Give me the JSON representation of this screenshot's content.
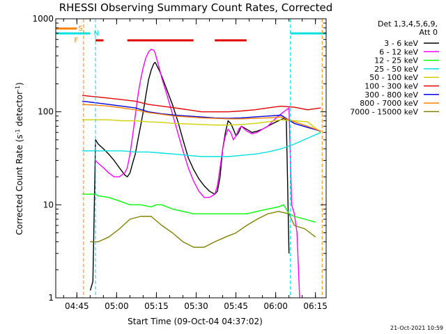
{
  "chart_data": {
    "type": "line",
    "title": "RHESSI Observing Summary Count Rates, Corrected",
    "xlabel": "Start Time (09-Oct-04 04:37:02)",
    "ylabel": "Corrected Count Rate (s⁻¹ detector⁻¹)",
    "ylabel_main": "Corrected Count Rate (s",
    "ylabel_sup1": "-1",
    "ylabel_mid": " detector",
    "ylabel_sup2": "-1",
    "ylabel_end": ")",
    "yscale": "log",
    "ylim": [
      1,
      1000
    ],
    "xlim_minutes_from_start": [
      0,
      102
    ],
    "xtick_labels": [
      "04:45",
      "05:00",
      "05:15",
      "05:30",
      "05:45",
      "06:00",
      "06:15"
    ],
    "xtick_minutes_from_start": [
      7.97,
      22.97,
      37.97,
      52.97,
      67.97,
      82.97,
      97.97
    ],
    "ytick_labels": [
      "1",
      "10",
      "100",
      "1000"
    ],
    "ytick_values": [
      1,
      10,
      100,
      1000
    ],
    "legend_header": [
      "Det 1,3,4,5,6,9,",
      "Att 0"
    ],
    "legend_position": "right",
    "timestamp": "21-Oct-2021 10:59",
    "flags": {
      "saa_label": "S",
      "flare_label": "F",
      "night_label": "N",
      "saa": [
        [
          0,
          8
        ]
      ],
      "night": [
        [
          0,
          13
        ],
        [
          88.5,
          102
        ]
      ],
      "flare": [
        [
          15,
          18
        ],
        [
          27,
          52
        ],
        [
          60,
          72
        ]
      ],
      "saa_color": "#ff8000",
      "night_color": "#00e0e0",
      "flare_color": "#e00000"
    },
    "vlines": [
      {
        "t": 10.5,
        "color": "#ff8000"
      },
      {
        "t": 15.0,
        "color": "#00e0e0"
      },
      {
        "t": 88.5,
        "color": "#00e0e0"
      },
      {
        "t": 100.5,
        "color": "#ff8000"
      }
    ],
    "series": [
      {
        "name": "3 - 6 keV",
        "color": "#000000",
        "x": [
          13,
          14,
          15,
          16,
          18,
          20,
          22,
          24,
          26,
          27,
          28,
          29,
          30,
          31,
          32,
          33,
          34,
          35,
          36,
          37,
          37.5,
          38,
          39,
          40,
          42,
          44,
          46,
          48,
          50,
          52,
          54,
          56,
          58,
          60,
          61,
          62,
          63,
          64,
          65,
          66,
          67,
          68,
          69,
          70,
          72,
          74,
          76,
          78,
          80,
          82,
          84,
          86,
          87,
          88
        ],
        "y": [
          1.2,
          1.5,
          50,
          45,
          40,
          35,
          30,
          25,
          21,
          20,
          22,
          28,
          35,
          50,
          70,
          100,
          150,
          220,
          280,
          330,
          340,
          320,
          280,
          240,
          170,
          120,
          80,
          50,
          32,
          24,
          19,
          16,
          14,
          13,
          14,
          20,
          40,
          60,
          80,
          75,
          65,
          55,
          60,
          70,
          65,
          60,
          62,
          65,
          70,
          75,
          80,
          85,
          82,
          3
        ]
      },
      {
        "name": "6 - 12 keV",
        "color": "#ff00ff",
        "x": [
          15,
          16,
          18,
          20,
          22,
          24,
          26,
          27,
          28,
          29,
          30,
          31,
          32,
          33,
          34,
          35,
          36,
          37,
          37.5,
          38,
          39,
          40,
          42,
          44,
          46,
          48,
          50,
          52,
          54,
          56,
          58,
          60,
          61,
          62,
          63,
          64,
          65,
          66,
          67,
          68,
          69,
          70,
          72,
          74,
          76,
          78,
          80,
          82,
          84,
          86,
          88,
          89,
          90,
          91,
          92
        ],
        "y": [
          30,
          28,
          25,
          22,
          20,
          20,
          22,
          25,
          35,
          55,
          90,
          150,
          220,
          300,
          380,
          440,
          470,
          460,
          430,
          380,
          300,
          230,
          150,
          95,
          60,
          38,
          25,
          18,
          14,
          12,
          12,
          13,
          16,
          25,
          40,
          55,
          65,
          60,
          50,
          55,
          65,
          70,
          62,
          58,
          60,
          65,
          70,
          80,
          90,
          100,
          110,
          10,
          8,
          5,
          1
        ]
      },
      {
        "name": "12 - 25 keV",
        "color": "#00ff00",
        "x": [
          10,
          13,
          15,
          16,
          20,
          24,
          28,
          32,
          36,
          38,
          40,
          44,
          48,
          52,
          56,
          60,
          64,
          68,
          72,
          76,
          80,
          84,
          86,
          88,
          90,
          94,
          98
        ],
        "y": [
          13,
          13,
          13,
          12.5,
          12,
          11,
          10,
          10,
          9.5,
          10,
          10,
          9,
          8.5,
          8,
          8,
          8,
          8,
          8,
          8,
          8.5,
          9,
          9.5,
          10,
          8,
          7.5,
          7,
          6.5
        ]
      },
      {
        "name": "25 - 50 keV",
        "color": "#00e0e0",
        "x": [
          10,
          15,
          20,
          25,
          30,
          35,
          40,
          45,
          50,
          55,
          60,
          65,
          70,
          75,
          80,
          85,
          90,
          95,
          100
        ],
        "y": [
          38,
          38,
          38,
          38,
          37,
          37,
          36,
          35,
          34,
          33,
          33,
          33,
          34,
          35,
          37,
          40,
          45,
          52,
          60
        ]
      },
      {
        "name": "50 - 100 keV",
        "color": "#d0d000",
        "x": [
          10,
          15,
          20,
          25,
          30,
          35,
          40,
          45,
          50,
          55,
          60,
          65,
          70,
          75,
          80,
          85,
          90,
          95,
          100
        ],
        "y": [
          82,
          82,
          82,
          80,
          80,
          78,
          77,
          75,
          74,
          73,
          72,
          72,
          73,
          75,
          78,
          82,
          80,
          78,
          60
        ]
      },
      {
        "name": "100 - 300 keV",
        "color": "#e00000",
        "x": [
          10,
          15,
          20,
          25,
          30,
          35,
          40,
          45,
          50,
          55,
          60,
          65,
          70,
          75,
          80,
          85,
          90,
          95,
          100
        ],
        "y": [
          150,
          145,
          140,
          135,
          130,
          120,
          115,
          110,
          105,
          100,
          100,
          100,
          102,
          105,
          110,
          115,
          112,
          105,
          110
        ]
      },
      {
        "name": "300 - 800 keV",
        "color": "#0000e0",
        "x": [
          10,
          15,
          20,
          25,
          30,
          35,
          40,
          45,
          50,
          55,
          60,
          65,
          70,
          75,
          80,
          85,
          90,
          95,
          100
        ],
        "y": [
          130,
          125,
          120,
          115,
          110,
          100,
          95,
          92,
          90,
          88,
          86,
          85,
          86,
          88,
          90,
          92,
          75,
          68,
          62
        ]
      },
      {
        "name": "800 - 7000 keV",
        "color": "#ff8000",
        "x": [
          10,
          15,
          20,
          25,
          30,
          35,
          40,
          45,
          50,
          55,
          60,
          65,
          70,
          75,
          80,
          85,
          90,
          95,
          100
        ],
        "y": [
          120,
          118,
          115,
          110,
          105,
          98,
          94,
          90,
          88,
          86,
          85,
          84,
          84,
          85,
          86,
          88,
          78,
          70,
          62
        ]
      },
      {
        "name": "7000 - 15000 keV",
        "color": "#808000",
        "x": [
          13,
          16,
          20,
          24,
          28,
          32,
          36,
          40,
          44,
          48,
          52,
          56,
          60,
          64,
          68,
          72,
          76,
          80,
          84,
          88,
          90,
          94,
          98
        ],
        "y": [
          4,
          4,
          4.5,
          5.5,
          7,
          7.5,
          7.5,
          6,
          5,
          4,
          3.5,
          3.5,
          4,
          4.5,
          5,
          6,
          7,
          8,
          8.5,
          8,
          6,
          5.5,
          4.5
        ]
      }
    ]
  }
}
